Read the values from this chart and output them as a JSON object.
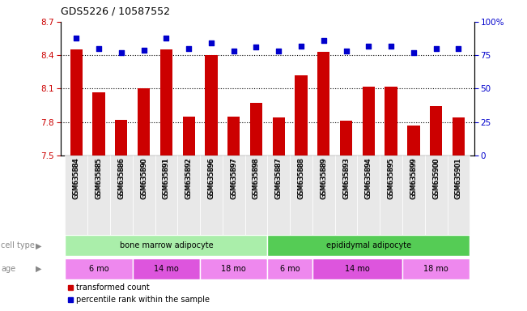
{
  "title": "GDS5226 / 10587552",
  "samples": [
    "GSM635884",
    "GSM635885",
    "GSM635886",
    "GSM635890",
    "GSM635891",
    "GSM635892",
    "GSM635896",
    "GSM635897",
    "GSM635898",
    "GSM635887",
    "GSM635888",
    "GSM635889",
    "GSM635893",
    "GSM635894",
    "GSM635895",
    "GSM635899",
    "GSM635900",
    "GSM635901"
  ],
  "bar_values": [
    8.45,
    8.07,
    7.82,
    8.1,
    8.45,
    7.85,
    8.4,
    7.85,
    7.97,
    7.84,
    8.22,
    8.43,
    7.81,
    8.12,
    8.12,
    7.77,
    7.94,
    7.84
  ],
  "dot_values": [
    88,
    80,
    77,
    79,
    88,
    80,
    84,
    78,
    81,
    78,
    82,
    86,
    78,
    82,
    82,
    77,
    80,
    80
  ],
  "bar_color": "#cc0000",
  "dot_color": "#0000cc",
  "ylim_left": [
    7.5,
    8.7
  ],
  "ylim_right": [
    0,
    100
  ],
  "yticks_left": [
    7.5,
    7.8,
    8.1,
    8.4,
    8.7
  ],
  "yticks_right": [
    0,
    25,
    50,
    75,
    100
  ],
  "grid_values": [
    7.8,
    8.1,
    8.4
  ],
  "cell_type_groups": [
    {
      "label": "bone marrow adipocyte",
      "start": 0,
      "end": 8,
      "color": "#aaeeaa"
    },
    {
      "label": "epididymal adipocyte",
      "start": 9,
      "end": 17,
      "color": "#55cc55"
    }
  ],
  "age_groups": [
    {
      "label": "6 mo",
      "start": 0,
      "end": 2,
      "color": "#ee88ee"
    },
    {
      "label": "14 mo",
      "start": 3,
      "end": 5,
      "color": "#dd55dd"
    },
    {
      "label": "18 mo",
      "start": 6,
      "end": 8,
      "color": "#ee88ee"
    },
    {
      "label": "6 mo",
      "start": 9,
      "end": 10,
      "color": "#ee88ee"
    },
    {
      "label": "14 mo",
      "start": 11,
      "end": 14,
      "color": "#dd55dd"
    },
    {
      "label": "18 mo",
      "start": 15,
      "end": 17,
      "color": "#ee88ee"
    }
  ],
  "legend_bar_label": "transformed count",
  "legend_dot_label": "percentile rank within the sample",
  "bar_width": 0.55
}
